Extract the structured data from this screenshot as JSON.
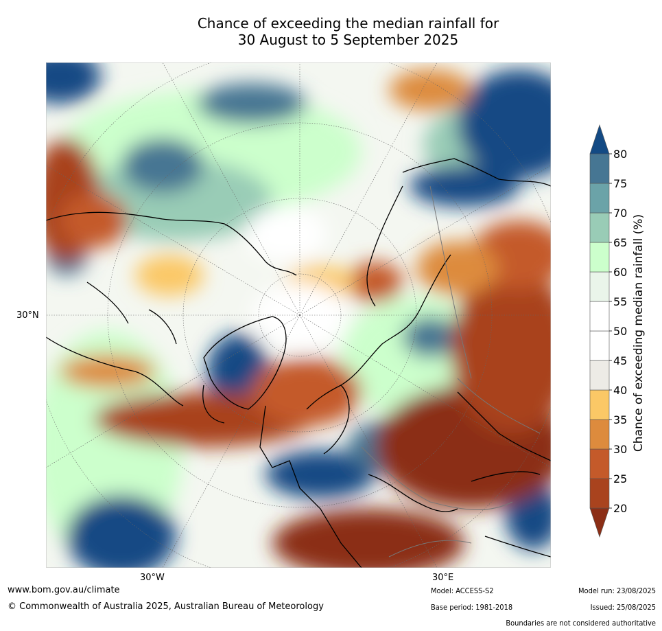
{
  "title": {
    "line1": "Chance of exceeding the median rainfall for",
    "line2": "30 August to 5 September 2025"
  },
  "map": {
    "projection": "north-polar-stereographic",
    "lon_labels": [
      "30°W",
      "30°E"
    ],
    "lat_labels": [
      "30°N"
    ]
  },
  "colorbar": {
    "label": "Chance of exceeding median rainfall (%)",
    "ticks": [
      "20",
      "25",
      "30",
      "35",
      "40",
      "45",
      "50",
      "55",
      "60",
      "65",
      "70",
      "75",
      "80"
    ],
    "bins": [
      {
        "range": "<20",
        "color": "#8b2e16"
      },
      {
        "range": "20-25",
        "color": "#a9431e"
      },
      {
        "range": "25-30",
        "color": "#c45a2a"
      },
      {
        "range": "30-35",
        "color": "#dd8b3d"
      },
      {
        "range": "35-40",
        "color": "#fbc866"
      },
      {
        "range": "40-45",
        "color": "#edebe6"
      },
      {
        "range": "45-50",
        "color": "#ffffff"
      },
      {
        "range": "50-55",
        "color": "#ffffff"
      },
      {
        "range": "55-60",
        "color": "#eaf5ea"
      },
      {
        "range": "60-65",
        "color": "#ccffcc"
      },
      {
        "range": "65-70",
        "color": "#99ccb6"
      },
      {
        "range": "70-75",
        "color": "#6ba3a8"
      },
      {
        "range": "75-80",
        "color": "#467693"
      },
      {
        "range": ">80",
        "color": "#134a84"
      }
    ]
  },
  "footer": {
    "website": "www.bom.gov.au/climate",
    "copyright": "© Commonwealth of Australia 2025, Australian Bureau of Meteorology",
    "model": "Model: ACCESS-S2",
    "base_period": "Base period: 1981-2018",
    "model_run": "Model run: 23/08/2025",
    "issued": "Issued: 25/08/2025",
    "disclaimer": "Boundaries are not considered authoritative"
  }
}
